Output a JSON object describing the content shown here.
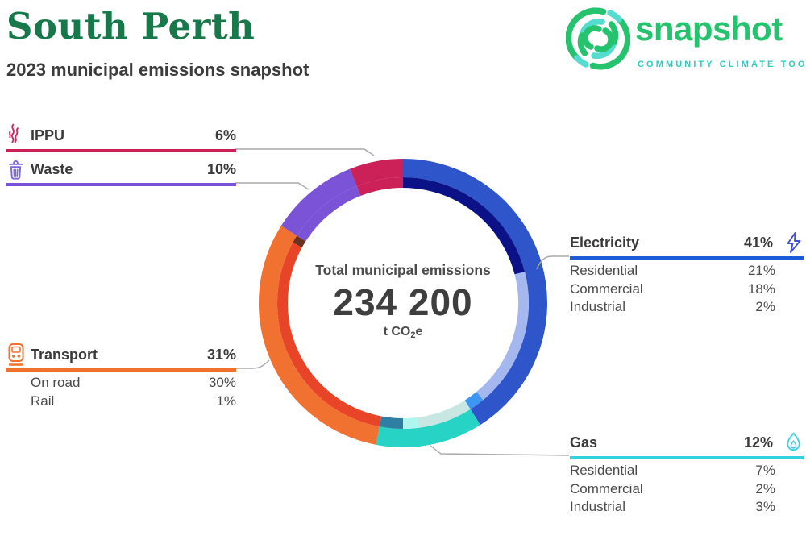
{
  "header": {
    "title": "South Perth",
    "subtitle": "2023 municipal emissions snapshot"
  },
  "logo": {
    "wordmark": "snapshot",
    "tagline": "COMMUNITY CLIMATE TOOL",
    "wordmark_color": "#26c36e",
    "tagline_color": "#2bcdc1"
  },
  "center": {
    "label": "Total municipal emissions",
    "value": "234 200",
    "unit_prefix": "t CO",
    "unit_sub": "2",
    "unit_suffix": "e"
  },
  "chart_data": {
    "type": "donut",
    "title": "Total municipal emissions",
    "total_label": "234 200",
    "total_value": 234200,
    "unit": "t CO2e",
    "start_angle_deg": 0,
    "direction": "clockwise",
    "segments": [
      {
        "label": "Electricity",
        "pct": 41,
        "pct_label": "41%",
        "color": "#2e55c9",
        "underline_color": "#1d5bd8",
        "icon": "lightning-icon",
        "legend_side": "right",
        "sub": [
          {
            "label": "Residential",
            "pct": 21,
            "pct_label": "21%",
            "color": "#0b1287"
          },
          {
            "label": "Commercial",
            "pct": 18,
            "pct_label": "18%",
            "color": "#a4b8ef"
          },
          {
            "label": "Industrial",
            "pct": 2,
            "pct_label": "2%",
            "color": "#3b97f2"
          }
        ]
      },
      {
        "label": "Gas",
        "pct": 12,
        "pct_label": "12%",
        "color": "#27d3c5",
        "underline_color": "#32d2dc",
        "icon": "flame-icon",
        "legend_side": "right",
        "sub": [
          {
            "label": "Residential",
            "pct": 7,
            "pct_label": "7%",
            "color": "#c9e7e2"
          },
          {
            "label": "Commercial",
            "pct": 2,
            "pct_label": "2%",
            "color": "#aef6ee"
          },
          {
            "label": "Industrial",
            "pct": 3,
            "pct_label": "3%",
            "color": "#2f7fa5"
          }
        ]
      },
      {
        "label": "Transport",
        "pct": 31,
        "pct_label": "31%",
        "color": "#f17130",
        "underline_color": "#f17130",
        "icon": "train-icon",
        "legend_side": "left",
        "sub": [
          {
            "label": "On road",
            "pct": 30,
            "pct_label": "30%",
            "color": "#e84428"
          },
          {
            "label": "Rail",
            "pct": 1,
            "pct_label": "1%",
            "color": "#6a3220"
          }
        ]
      },
      {
        "label": "Waste",
        "pct": 10,
        "pct_label": "10%",
        "color": "#7b53d7",
        "underline_color": "#7a52d8",
        "icon": "trash-icon",
        "legend_side": "left",
        "sub": []
      },
      {
        "label": "IPPU",
        "pct": 6,
        "pct_label": "6%",
        "color": "#cb2158",
        "underline_color": "#cb2157",
        "icon": "smoke-icon",
        "legend_side": "left",
        "sub": []
      }
    ]
  }
}
